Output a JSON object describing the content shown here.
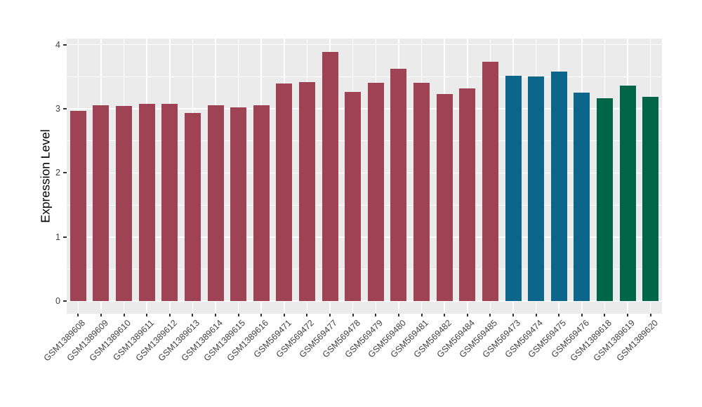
{
  "chart_data": {
    "type": "bar",
    "title": "",
    "xlabel": "",
    "ylabel": "Expression Level",
    "ylim": [
      0,
      4
    ],
    "yticks": [
      0,
      1,
      2,
      3,
      4
    ],
    "ytick_labels": [
      "0",
      "1",
      "2",
      "3",
      "4"
    ],
    "yticks_minor": [
      0.5,
      1.5,
      2.5,
      3.5
    ],
    "legend_position": "none",
    "grid": "white major and minor gridlines on gray panel",
    "panel_background": "#EBEBEB",
    "gridline_color": "#FFFFFF",
    "axis_text_color": "#404040",
    "palette": {
      "maroon": "#9E4254",
      "teal": "#0C668C",
      "green": "#006645"
    },
    "categories": [
      "GSM1389608",
      "GSM1389609",
      "GSM1389610",
      "GSM1389611",
      "GSM1389612",
      "GSM1389613",
      "GSM1389614",
      "GSM1389615",
      "GSM1389616",
      "GSM569471",
      "GSM569472",
      "GSM569477",
      "GSM569478",
      "GSM569479",
      "GSM569480",
      "GSM569481",
      "GSM569482",
      "GSM569484",
      "GSM569485",
      "GSM569473",
      "GSM569474",
      "GSM569475",
      "GSM569476",
      "GSM1389618",
      "GSM1389619",
      "GSM1389620"
    ],
    "values": [
      2.97,
      3.05,
      3.04,
      3.08,
      3.08,
      2.94,
      3.05,
      3.02,
      3.06,
      3.4,
      3.42,
      3.89,
      3.26,
      3.41,
      3.62,
      3.41,
      3.23,
      3.32,
      3.73,
      3.52,
      3.5,
      3.58,
      3.25,
      3.17,
      3.36,
      3.19
    ],
    "bar_colors": [
      "maroon",
      "maroon",
      "maroon",
      "maroon",
      "maroon",
      "maroon",
      "maroon",
      "maroon",
      "maroon",
      "maroon",
      "maroon",
      "maroon",
      "maroon",
      "maroon",
      "maroon",
      "maroon",
      "maroon",
      "maroon",
      "maroon",
      "teal",
      "teal",
      "teal",
      "teal",
      "green",
      "green",
      "green"
    ]
  }
}
